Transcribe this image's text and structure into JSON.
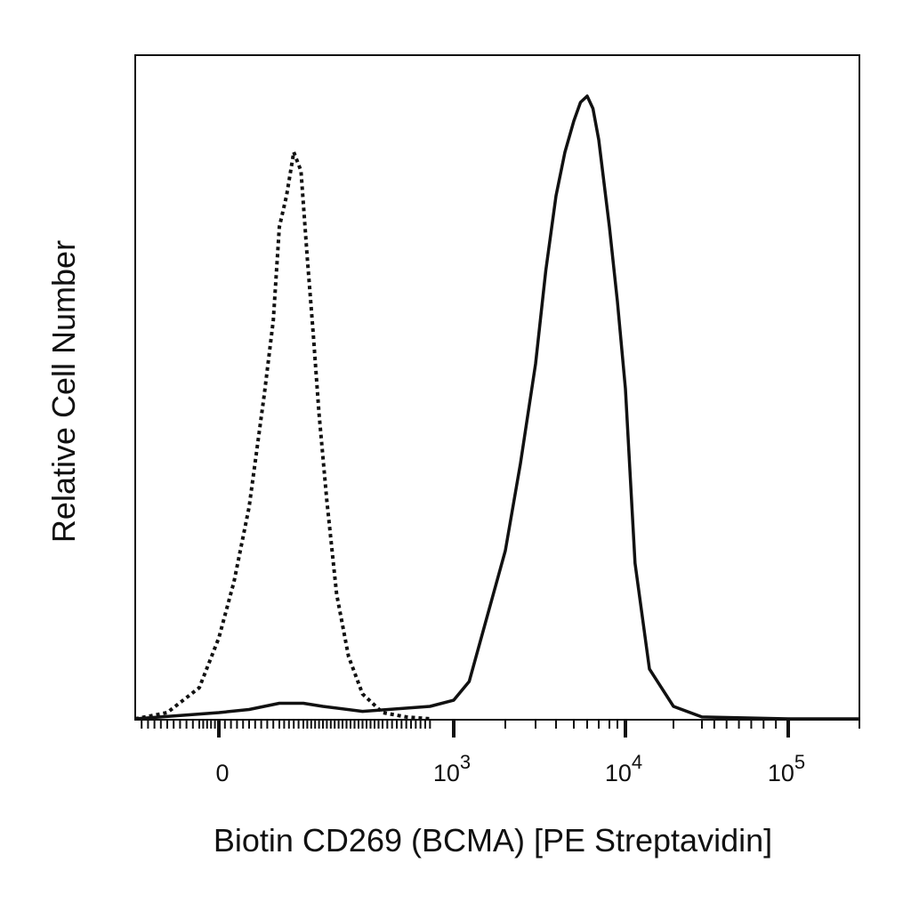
{
  "chart_data": {
    "type": "area",
    "xlabel": "Biotin CD269 (BCMA) [PE Streptavidin]",
    "ylabel": "Relative Cell Number",
    "x_scale": "logicle",
    "x_ticks": [
      {
        "value": 0,
        "base": "0",
        "exp": ""
      },
      {
        "value": 1000,
        "base": "10",
        "exp": "3"
      },
      {
        "value": 10000,
        "base": "10",
        "exp": "4"
      },
      {
        "value": 100000,
        "base": "10",
        "exp": "5"
      }
    ],
    "series": [
      {
        "style": "dotted",
        "color": "#111111",
        "x": [
          -300,
          -200,
          -100,
          0,
          50,
          100,
          150,
          180,
          200,
          230,
          260,
          290,
          320,
          350,
          380,
          420,
          470,
          530,
          600,
          700,
          800,
          900
        ],
        "y": [
          0,
          1,
          5,
          13,
          22,
          34,
          52,
          64,
          79,
          84,
          91,
          88,
          74,
          62,
          49,
          35,
          20,
          10,
          4,
          1,
          0.3,
          0
        ]
      },
      {
        "style": "solid",
        "color": "#111111",
        "x": [
          -300,
          0,
          100,
          200,
          300,
          400,
          600,
          900,
          1000,
          1300,
          1600,
          2000,
          2500,
          3000,
          3500,
          4000,
          4500,
          5000,
          5500,
          6000,
          6500,
          7000,
          8000,
          9000,
          10000,
          12000,
          15000,
          20000,
          30000,
          100000,
          200000
        ],
        "y": [
          0,
          1,
          1.5,
          2.5,
          2.5,
          2,
          1.2,
          2,
          3,
          6,
          15,
          27,
          41,
          57,
          72,
          84,
          91,
          96,
          99,
          100,
          98,
          93,
          79,
          67,
          53,
          25,
          8,
          2,
          0.3,
          0,
          0
        ]
      }
    ]
  }
}
